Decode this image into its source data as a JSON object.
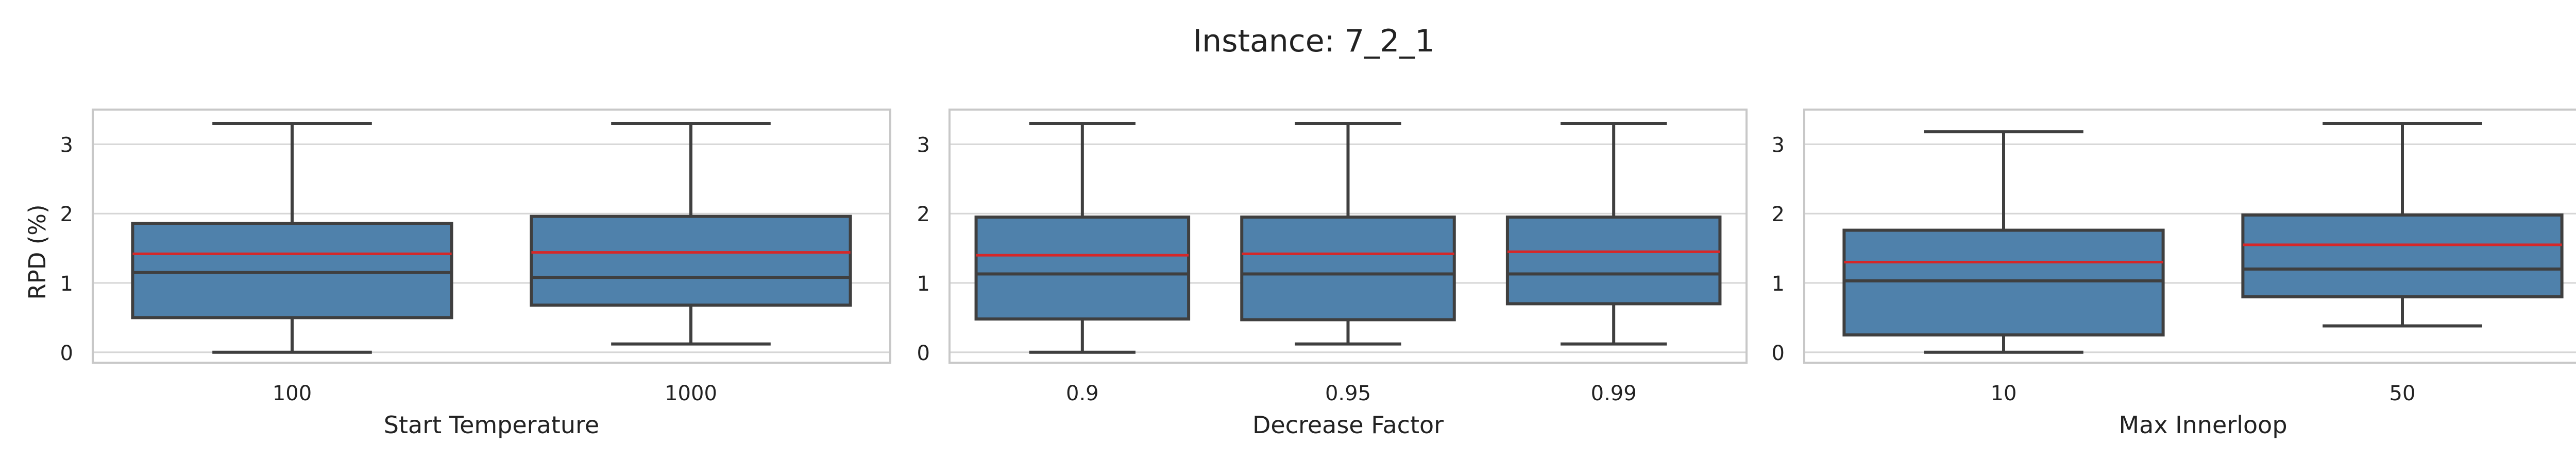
{
  "figure": {
    "title": "Instance: 7_2_1",
    "ylabel": "RPD (%)"
  },
  "colors": {
    "box_fill": "#4f81ab",
    "box_edge": "#3f3f3f",
    "mean_line": "#d62728",
    "grid": "#d6d6d6",
    "frame": "#c8c8c8"
  },
  "chart_data": [
    {
      "type": "box",
      "xlabel": "Start Temperature",
      "ylabel": "RPD (%)",
      "ylim": [
        -0.15,
        3.5
      ],
      "yticks": [
        0,
        1,
        2,
        3
      ],
      "grid": "horizontal",
      "categories": [
        "100",
        "1000"
      ],
      "boxes": [
        {
          "whisker_low": 0.0,
          "q1": 0.5,
          "median": 1.15,
          "mean": 1.42,
          "q3": 1.86,
          "whisker_high": 3.3
        },
        {
          "whisker_low": 0.12,
          "q1": 0.68,
          "median": 1.08,
          "mean": 1.44,
          "q3": 1.96,
          "whisker_high": 3.3
        }
      ]
    },
    {
      "type": "box",
      "xlabel": "Decrease Factor",
      "ylabel": "",
      "ylim": [
        -0.15,
        3.5
      ],
      "yticks": [
        0,
        1,
        2,
        3
      ],
      "grid": "horizontal",
      "categories": [
        "0.9",
        "0.95",
        "0.99"
      ],
      "boxes": [
        {
          "whisker_low": 0.0,
          "q1": 0.48,
          "median": 1.13,
          "mean": 1.4,
          "q3": 1.95,
          "whisker_high": 3.3
        },
        {
          "whisker_low": 0.12,
          "q1": 0.47,
          "median": 1.13,
          "mean": 1.42,
          "q3": 1.95,
          "whisker_high": 3.3
        },
        {
          "whisker_low": 0.12,
          "q1": 0.7,
          "median": 1.13,
          "mean": 1.45,
          "q3": 1.95,
          "whisker_high": 3.3
        }
      ]
    },
    {
      "type": "box",
      "xlabel": "Max Innerloop",
      "ylabel": "",
      "ylim": [
        -0.15,
        3.5
      ],
      "yticks": [
        0,
        1,
        2,
        3
      ],
      "grid": "horizontal",
      "categories": [
        "10",
        "50"
      ],
      "boxes": [
        {
          "whisker_low": 0.0,
          "q1": 0.25,
          "median": 1.03,
          "mean": 1.3,
          "q3": 1.76,
          "whisker_high": 3.18
        },
        {
          "whisker_low": 0.38,
          "q1": 0.8,
          "median": 1.2,
          "mean": 1.55,
          "q3": 1.98,
          "whisker_high": 3.3
        }
      ]
    }
  ]
}
